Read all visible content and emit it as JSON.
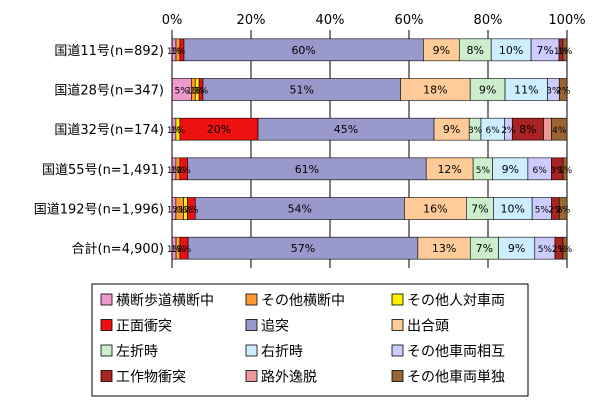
{
  "chart_data": {
    "type": "bar",
    "orientation": "horizontal",
    "stacked": "percent",
    "xlim": [
      0,
      100
    ],
    "x_ticks": [
      "0%",
      "20%",
      "40%",
      "60%",
      "80%",
      "100%"
    ],
    "grid": true,
    "legend_position": "bottom",
    "categories": [
      "国道11号(n=892)",
      "国道28号(n=347)",
      "国道32号(n=174)",
      "国道55号(n=1,491)",
      "国道192号(n=1,996)",
      "合計(n=4,900)"
    ],
    "series": [
      {
        "name": "横断歩道横断中",
        "color": "#ee99cc",
        "values": [
          1,
          5,
          1,
          1,
          1,
          1
        ],
        "labels": [
          "1%",
          "5%",
          "1%",
          "1%",
          "1%",
          "1%"
        ]
      },
      {
        "name": "その他横断中",
        "color": "#ff9933",
        "values": [
          1,
          1,
          0,
          1,
          2,
          1
        ],
        "labels": [
          "1%",
          "1%",
          "",
          "1%",
          "2%",
          "1%"
        ]
      },
      {
        "name": "その他人対車両",
        "color": "#ffee00",
        "values": [
          0,
          1,
          1,
          0,
          1,
          0
        ],
        "labels": [
          "",
          "1%",
          "1%",
          "",
          "1%",
          ""
        ]
      },
      {
        "name": "正面衝突",
        "color": "#ee1111",
        "values": [
          1,
          1,
          20,
          2,
          2,
          2
        ],
        "labels": [
          "",
          "1%",
          "20%",
          "2%",
          "2%",
          "2%"
        ]
      },
      {
        "name": "追突",
        "color": "#9999cc",
        "values": [
          60,
          51,
          45,
          61,
          54,
          57
        ],
        "labels": [
          "60%",
          "51%",
          "45%",
          "61%",
          "54%",
          "57%"
        ]
      },
      {
        "name": "出合頭",
        "color": "#ffcc99",
        "values": [
          9,
          18,
          9,
          12,
          16,
          13
        ],
        "labels": [
          "9%",
          "18%",
          "9%",
          "12%",
          "16%",
          "13%"
        ]
      },
      {
        "name": "左折時",
        "color": "#cceecc",
        "values": [
          8,
          9,
          3,
          5,
          7,
          7
        ],
        "labels": [
          "8%",
          "9%",
          "3%",
          "5%",
          "7%",
          "7%"
        ]
      },
      {
        "name": "右折時",
        "color": "#cceeff",
        "values": [
          10,
          11,
          6,
          9,
          10,
          9
        ],
        "labels": [
          "10%",
          "11%",
          "6%",
          "9%",
          "10%",
          "9%"
        ]
      },
      {
        "name": "その他車両相互",
        "color": "#ccccff",
        "values": [
          7,
          3,
          2,
          6,
          5,
          5
        ],
        "labels": [
          "7%",
          "3%",
          "2%",
          "6%",
          "5%",
          "5%"
        ]
      },
      {
        "name": "工作物衝突",
        "color": "#aa2222",
        "values": [
          1,
          0,
          8,
          3,
          2,
          2
        ],
        "labels": [
          "1%",
          "",
          "8%",
          "3%",
          "2%",
          "2%"
        ]
      },
      {
        "name": "路外逸脱",
        "color": "#ee9999",
        "values": [
          0,
          0,
          2,
          0,
          0,
          0
        ],
        "labels": [
          "",
          "",
          "",
          "",
          "",
          ""
        ]
      },
      {
        "name": "その他車両単独",
        "color": "#996633",
        "values": [
          1,
          2,
          4,
          1,
          2,
          1
        ],
        "labels": [
          "1%",
          "2%",
          "4%",
          "1%",
          "2%",
          "1%"
        ]
      }
    ]
  }
}
